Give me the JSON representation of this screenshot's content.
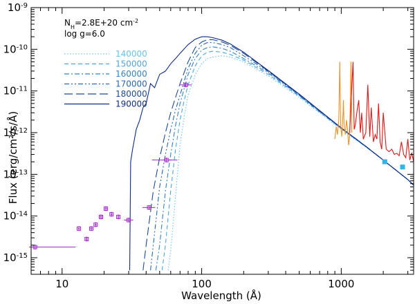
{
  "chart_data": {
    "type": "line",
    "title": "",
    "xlabel": "Wavelength (Å)",
    "ylabel": "Flux (erg/cm²/s/Å)",
    "xscale": "log",
    "yscale": "log",
    "xlim": [
      6,
      3300
    ],
    "ylim": [
      4e-16,
      1e-09
    ],
    "grid": false,
    "x_ticks": [
      {
        "value": 10,
        "label": "10"
      },
      {
        "value": 100,
        "label": "100"
      },
      {
        "value": 1000,
        "label": "1000"
      }
    ],
    "y_ticks": [
      {
        "value": 1e-09,
        "base": "10",
        "exp": "-9"
      },
      {
        "value": 1e-10,
        "base": "10",
        "exp": "-10"
      },
      {
        "value": 1e-11,
        "base": "10",
        "exp": "-11"
      },
      {
        "value": 1e-12,
        "base": "10",
        "exp": "-12"
      },
      {
        "value": 1e-13,
        "base": "10",
        "exp": "-13"
      },
      {
        "value": 1e-14,
        "base": "10",
        "exp": "-14"
      },
      {
        "value": 1e-15,
        "base": "10",
        "exp": "-15"
      }
    ],
    "annotations": {
      "nh": {
        "prefix": "N",
        "sub": "H",
        "value": "=2.8E+20 cm",
        "sup": "-2"
      },
      "logg": "log g=6.0"
    },
    "legend": {
      "position": "top-left",
      "entries": [
        {
          "label": "140000",
          "color": "#66c2f0",
          "dash": "dotted"
        },
        {
          "label": "150000",
          "color": "#4aa6e0",
          "dash": "dashed"
        },
        {
          "label": "160000",
          "color": "#3182c8",
          "dash": "dash-dot"
        },
        {
          "label": "170000",
          "color": "#2566b0",
          "dash": "dash-dot-dot"
        },
        {
          "label": "180000",
          "color": "#1a4898",
          "dash": "long-dash"
        },
        {
          "label": "190000",
          "color": "#0c2a88",
          "dash": "solid"
        }
      ]
    },
    "series": [
      {
        "name": "140000",
        "type": "model",
        "color": "#66c2f0",
        "dash": "dotted",
        "x": [
          57.5,
          60,
          65,
          70,
          75,
          80,
          90,
          100,
          110,
          120,
          140,
          160,
          200,
          300,
          500,
          700,
          1000,
          1500,
          2000,
          3000,
          3300
        ],
        "y": [
          5e-16,
          1.5e-15,
          3e-14,
          5e-13,
          2.5e-12,
          8e-12,
          2.5e-11,
          4.5e-11,
          6e-11,
          6.5e-11,
          7e-11,
          6.5e-11,
          5e-11,
          2.3e-11,
          7e-12,
          3e-12,
          1.2e-12,
          4.5e-13,
          2.2e-13,
          7.5e-14,
          5.5e-14
        ]
      },
      {
        "name": "150000",
        "type": "model",
        "color": "#4aa6e0",
        "dash": "dashed",
        "x": [
          52,
          55,
          60,
          65,
          70,
          75,
          80,
          90,
          100,
          110,
          120,
          140,
          160,
          200,
          300,
          500,
          700,
          1000,
          1500,
          2000,
          3000,
          3300
        ],
        "y": [
          5e-16,
          2e-15,
          4e-14,
          4e-13,
          2e-12,
          6e-12,
          1.4e-11,
          4e-11,
          7e-11,
          8.5e-11,
          9e-11,
          8.5e-11,
          7.5e-11,
          5.5e-11,
          2.5e-11,
          7.5e-12,
          3.1e-12,
          1.25e-12,
          4.6e-13,
          2.2e-13,
          7.5e-14,
          5.5e-14
        ]
      },
      {
        "name": "160000",
        "type": "model",
        "color": "#3182c8",
        "dash": "dash-dot",
        "x": [
          47,
          50,
          55,
          60,
          65,
          70,
          80,
          90,
          100,
          110,
          120,
          140,
          160,
          200,
          300,
          500,
          700,
          1000,
          1500,
          2000,
          3000,
          3300
        ],
        "y": [
          5e-16,
          2e-15,
          4e-14,
          3e-13,
          1.5e-12,
          5e-12,
          2.5e-11,
          6e-11,
          9.5e-11,
          1.1e-10,
          1.15e-10,
          1.05e-10,
          9e-11,
          6e-11,
          2.7e-11,
          7.8e-12,
          3.2e-12,
          1.25e-12,
          4.6e-13,
          2.2e-13,
          7.5e-14,
          5.5e-14
        ]
      },
      {
        "name": "170000",
        "type": "model",
        "color": "#2566b0",
        "dash": "dash-dot-dot",
        "x": [
          43,
          45,
          50,
          55,
          60,
          65,
          70,
          80,
          90,
          100,
          110,
          120,
          140,
          160,
          200,
          300,
          500,
          700,
          1000,
          1500,
          2000,
          3000,
          3300
        ],
        "y": [
          5e-16,
          2e-15,
          5e-14,
          3e-13,
          1.2e-12,
          3.5e-12,
          8e-12,
          3.5e-11,
          8e-11,
          1.25e-10,
          1.45e-10,
          1.45e-10,
          1.3e-10,
          1.1e-10,
          7e-11,
          2.9e-11,
          8e-12,
          3.3e-12,
          1.3e-12,
          4.7e-13,
          2.2e-13,
          7.5e-14,
          5.5e-14
        ]
      },
      {
        "name": "180000",
        "type": "model",
        "color": "#1a4898",
        "dash": "long-dash",
        "x": [
          38,
          40,
          45,
          50,
          55,
          60,
          65,
          70,
          80,
          90,
          100,
          110,
          120,
          140,
          160,
          200,
          300,
          500,
          700,
          1000,
          1500,
          2000,
          3000,
          3300
        ],
        "y": [
          5e-16,
          2e-15,
          4e-14,
          2.5e-13,
          1e-12,
          3e-12,
          7e-12,
          1.5e-11,
          5e-11,
          1.1e-10,
          1.5e-10,
          1.7e-10,
          1.7e-10,
          1.5e-10,
          1.25e-10,
          8e-11,
          3e-11,
          8.2e-12,
          3.3e-12,
          1.3e-12,
          4.7e-13,
          2.2e-13,
          7.5e-14,
          5.5e-14
        ]
      },
      {
        "name": "190000",
        "type": "model",
        "color": "#0c2a88",
        "dash": "solid",
        "x": [
          30.5,
          31,
          32,
          34,
          36,
          38,
          40,
          43,
          46,
          50,
          55,
          60,
          65,
          70,
          80,
          90,
          100,
          110,
          120,
          140,
          160,
          200,
          300,
          500,
          700,
          1000,
          1500,
          2000,
          3000,
          3300
        ],
        "y": [
          5e-16,
          2e-13,
          4e-13,
          1.2e-12,
          2e-12,
          4e-12,
          5e-12,
          1.5e-11,
          1.2e-11,
          2.5e-11,
          3e-11,
          4.5e-11,
          6e-11,
          8e-11,
          1.3e-10,
          1.75e-10,
          2e-10,
          2e-10,
          1.9e-10,
          1.65e-10,
          1.35e-10,
          8.5e-11,
          3.1e-11,
          8.4e-12,
          3.4e-12,
          1.3e-12,
          4.7e-13,
          2.2e-13,
          7.5e-14,
          5.5e-14
        ]
      },
      {
        "name": "observed-uv-orange",
        "type": "observed",
        "color": "#f0901e",
        "x": [
          900,
          920,
          940,
          960,
          977,
          990,
          1010,
          1030,
          1035,
          1050,
          1070,
          1090,
          1110,
          1130,
          1150,
          1175,
          1190
        ],
        "y": [
          7e-13,
          1.4e-12,
          9e-13,
          2e-12,
          5e-11,
          1.5e-12,
          8e-13,
          3e-12,
          6e-12,
          1.5e-12,
          9e-13,
          2e-12,
          1.2e-12,
          5e-13,
          8e-13,
          5e-11,
          1e-12
        ]
      },
      {
        "name": "observed-uv-red",
        "type": "observed",
        "color": "#e01414",
        "x": [
          1150,
          1215,
          1238,
          1260,
          1300,
          1335,
          1370,
          1400,
          1440,
          1500,
          1550,
          1600,
          1640,
          1700,
          1750,
          1800,
          1850,
          1900,
          1950,
          2000,
          2100,
          2200,
          2300,
          2400,
          2500,
          2600,
          2700,
          2800,
          2900,
          3000,
          3100,
          3200,
          3300
        ],
        "y": [
          1e-12,
          5e-11,
          1.2e-12,
          1.5e-12,
          3.5e-12,
          6e-12,
          1e-12,
          3e-12,
          7e-13,
          1e-12,
          1.4e-11,
          8e-13,
          4e-12,
          6e-13,
          9e-13,
          7e-13,
          5e-12,
          6e-13,
          4e-13,
          3e-12,
          4e-13,
          3.5e-13,
          4e-13,
          3e-13,
          3.2e-13,
          2.8e-13,
          6e-13,
          3e-13,
          2.5e-13,
          7e-13,
          2.2e-13,
          3.3e-13,
          2e-13
        ]
      }
    ],
    "photometry": {
      "color": "#a020c8",
      "points": [
        {
          "x": 6.4,
          "y": 1.8e-15,
          "xerr": [
            5.8,
            12.5
          ]
        },
        {
          "x": 13.2,
          "y": 5e-15,
          "xerr": [
            13.0,
            13.4
          ]
        },
        {
          "x": 15.0,
          "y": 2.8e-15,
          "xerr": [
            14.7,
            15.3
          ]
        },
        {
          "x": 16.2,
          "y": 5e-15,
          "xerr": [
            15.9,
            16.5
          ]
        },
        {
          "x": 17.4,
          "y": 6.2e-15,
          "xerr": [
            17.1,
            17.7
          ]
        },
        {
          "x": 19.0,
          "y": 9.5e-15,
          "xerr": [
            18.6,
            19.4
          ]
        },
        {
          "x": 20.6,
          "y": 1.5e-14,
          "xerr": [
            20.2,
            21.0
          ]
        },
        {
          "x": 22.6,
          "y": 1.1e-14,
          "xerr": [
            22.2,
            23.0
          ]
        },
        {
          "x": 25.3,
          "y": 9.5e-15,
          "xerr": [
            24.9,
            25.7
          ]
        },
        {
          "x": 30.0,
          "y": 8e-15,
          "xerr": [
            27.8,
            32.3
          ]
        },
        {
          "x": 42.0,
          "y": 1.6e-14,
          "xerr": [
            37.6,
            46.5
          ]
        },
        {
          "x": 56.0,
          "y": 2.2e-13,
          "xerr": [
            44.0,
            67.0
          ]
        },
        {
          "x": 77.0,
          "y": 1.4e-11,
          "xerr": [
            70.0,
            85.0
          ]
        }
      ]
    },
    "filled_points": {
      "color": "#30b4e8",
      "points": [
        {
          "x": 2050,
          "y": 2e-13
        },
        {
          "x": 2750,
          "y": 1.5e-13
        }
      ]
    }
  }
}
